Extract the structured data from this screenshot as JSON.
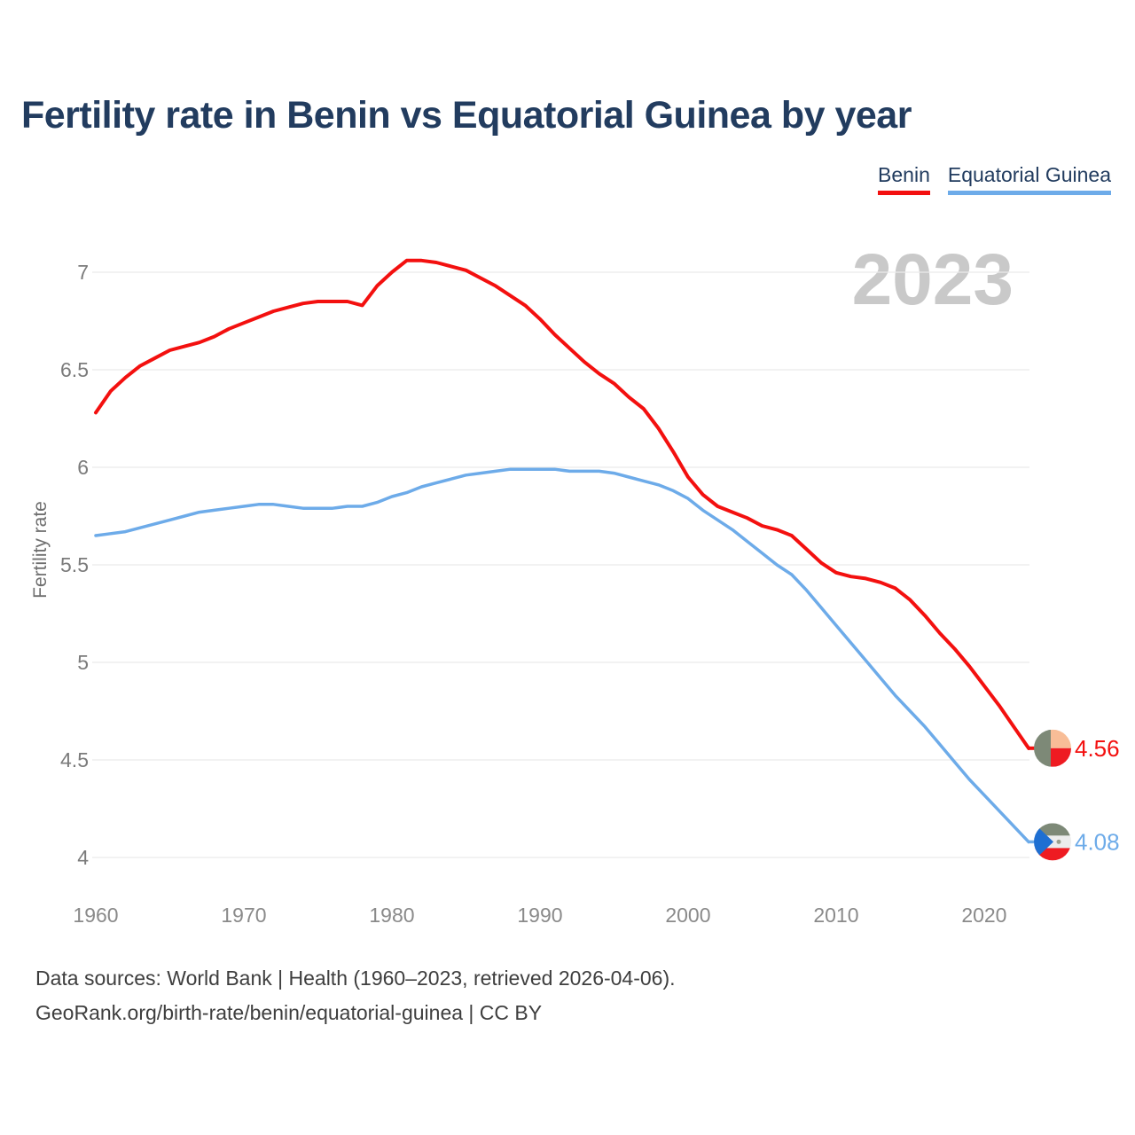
{
  "title": "Fertility rate in Benin vs Equatorial Guinea by year",
  "watermark": "2023",
  "legend": [
    {
      "label": "Benin",
      "color": "#f3100f"
    },
    {
      "label": "Equatorial Guinea",
      "color": "#6dabe9"
    }
  ],
  "y_axis": {
    "label": "Fertility rate",
    "ticks": [
      7,
      6.5,
      6,
      5.5,
      5,
      4.5,
      4
    ]
  },
  "x_axis": {
    "ticks": [
      1960,
      1970,
      1980,
      1990,
      2000,
      2010,
      2020
    ]
  },
  "footer": {
    "line1": "Data sources: World Bank | Health (1960–2023, retrieved 2026-04-06).",
    "line2": "GeoRank.org/birth-rate/benin/equatorial-guinea | CC BY"
  },
  "chart_data": {
    "type": "line",
    "title": "Fertility rate in Benin vs Equatorial Guinea by year",
    "xlabel": "",
    "ylabel": "Fertility rate",
    "xlim": [
      1960,
      2023
    ],
    "ylim": [
      3.85,
      7.25
    ],
    "grid": "horizontal",
    "legend_position": "top-right",
    "x": [
      1960,
      1961,
      1962,
      1963,
      1964,
      1965,
      1966,
      1967,
      1968,
      1969,
      1970,
      1971,
      1972,
      1973,
      1974,
      1975,
      1976,
      1977,
      1978,
      1979,
      1980,
      1981,
      1982,
      1983,
      1984,
      1985,
      1986,
      1987,
      1988,
      1989,
      1990,
      1991,
      1992,
      1993,
      1994,
      1995,
      1996,
      1997,
      1998,
      1999,
      2000,
      2001,
      2002,
      2003,
      2004,
      2005,
      2006,
      2007,
      2008,
      2009,
      2010,
      2011,
      2012,
      2013,
      2014,
      2015,
      2016,
      2017,
      2018,
      2019,
      2020,
      2021,
      2022,
      2023
    ],
    "series": [
      {
        "name": "Benin",
        "color": "#f3100f",
        "flag": "benin",
        "end_label": "4.56",
        "end_value": 4.56,
        "values": [
          6.28,
          6.39,
          6.46,
          6.52,
          6.56,
          6.6,
          6.62,
          6.64,
          6.67,
          6.71,
          6.74,
          6.77,
          6.8,
          6.82,
          6.84,
          6.85,
          6.85,
          6.85,
          6.83,
          6.93,
          7.0,
          7.06,
          7.06,
          7.05,
          7.03,
          7.01,
          6.97,
          6.93,
          6.88,
          6.83,
          6.76,
          6.68,
          6.61,
          6.54,
          6.48,
          6.43,
          6.36,
          6.3,
          6.2,
          6.08,
          5.95,
          5.86,
          5.8,
          5.77,
          5.74,
          5.7,
          5.68,
          5.65,
          5.58,
          5.51,
          5.46,
          5.44,
          5.43,
          5.41,
          5.38,
          5.32,
          5.24,
          5.15,
          5.07,
          4.98,
          4.88,
          4.78,
          4.67,
          4.56
        ]
      },
      {
        "name": "Equatorial Guinea",
        "color": "#6dabe9",
        "flag": "equatorial-guinea",
        "end_label": "4.08",
        "end_value": 4.08,
        "values": [
          5.65,
          5.66,
          5.67,
          5.69,
          5.71,
          5.73,
          5.75,
          5.77,
          5.78,
          5.79,
          5.8,
          5.81,
          5.81,
          5.8,
          5.79,
          5.79,
          5.79,
          5.8,
          5.8,
          5.82,
          5.85,
          5.87,
          5.9,
          5.92,
          5.94,
          5.96,
          5.97,
          5.98,
          5.99,
          5.99,
          5.99,
          5.99,
          5.98,
          5.98,
          5.98,
          5.97,
          5.95,
          5.93,
          5.91,
          5.88,
          5.84,
          5.78,
          5.73,
          5.68,
          5.62,
          5.56,
          5.5,
          5.45,
          5.37,
          5.28,
          5.19,
          5.1,
          5.01,
          4.92,
          4.83,
          4.75,
          4.67,
          4.58,
          4.49,
          4.4,
          4.32,
          4.24,
          4.16,
          4.08
        ]
      }
    ]
  }
}
